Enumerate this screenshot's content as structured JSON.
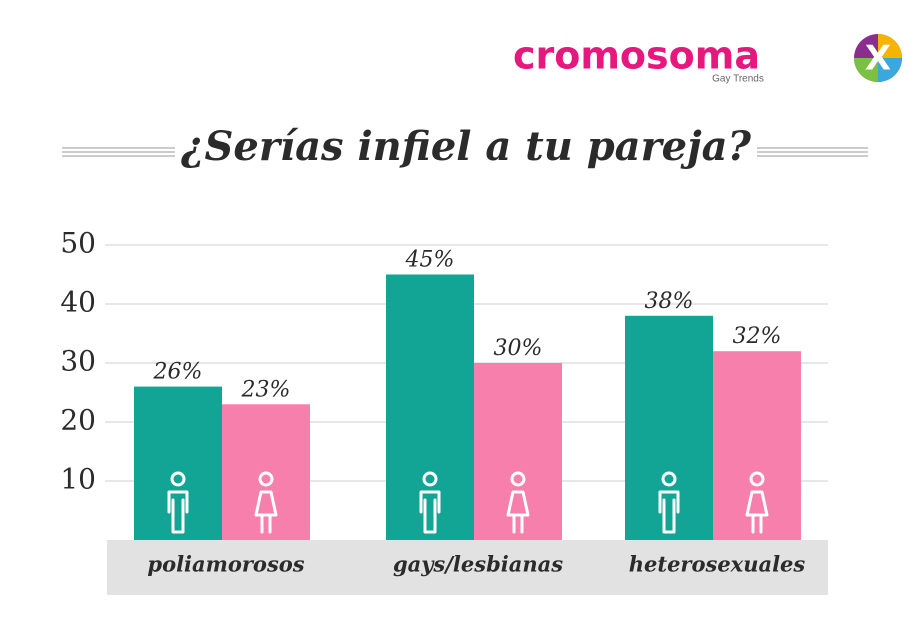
{
  "logo": {
    "name": "cromosoma",
    "mark": "X",
    "tagline": "Gay Trends"
  },
  "chart_data": {
    "type": "bar",
    "title": "¿Serías infiel a tu pareja?",
    "categories": [
      "poliamorosos",
      "gays/lesbianas",
      "heterosexuales"
    ],
    "series": [
      {
        "color": "#12a596",
        "values": [
          26,
          45,
          38
        ],
        "value_labels": [
          "26%",
          "45%",
          "38%"
        ]
      },
      {
        "color": "#f77fab",
        "values": [
          23,
          30,
          32
        ],
        "value_labels": [
          "23%",
          "30%",
          "32%"
        ]
      }
    ],
    "ylim": [
      0,
      50
    ],
    "yticks": [
      10,
      20,
      30,
      40,
      50
    ],
    "grid": true
  }
}
